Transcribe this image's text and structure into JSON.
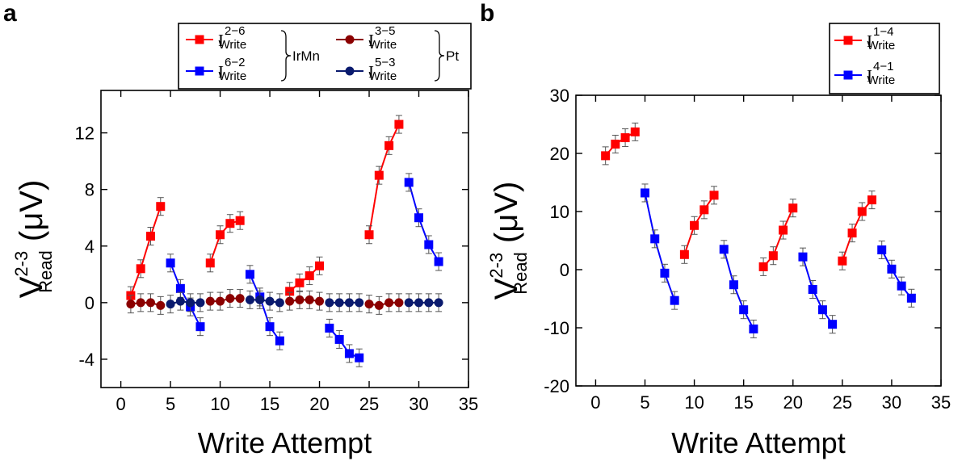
{
  "panels": {
    "a": {
      "label": "a"
    },
    "b": {
      "label": "b"
    }
  },
  "chart_data": [
    {
      "id": "a",
      "type": "line",
      "xlabel": "Write Attempt",
      "ylabel": {
        "main": "V",
        "sup": "2-3",
        "sub": "Read",
        "unit": "(μV)"
      },
      "xlim": [
        -2,
        35
      ],
      "ylim": [
        -6,
        15
      ],
      "xticks": [
        0,
        5,
        10,
        15,
        20,
        25,
        30,
        35
      ],
      "yticks": [
        -4,
        0,
        4,
        8,
        12
      ],
      "grid": false,
      "legend_position": "top",
      "legend_groups": [
        {
          "label": "IrMn",
          "members": [
            0,
            1
          ]
        },
        {
          "label": "Pt",
          "members": [
            2,
            3
          ]
        }
      ],
      "series": [
        {
          "name": "I_Write^{2−6}",
          "main": "I",
          "sup": "2−6",
          "sub": "Write",
          "color": "#ff0000",
          "marker": "square",
          "segments": [
            {
              "x": [
                1,
                2,
                3,
                4
              ],
              "y": [
                0.5,
                2.4,
                4.7,
                6.8
              ]
            },
            {
              "x": [
                9,
                10,
                11,
                12
              ],
              "y": [
                2.8,
                4.8,
                5.6,
                5.8
              ]
            },
            {
              "x": [
                17,
                18,
                19,
                20
              ],
              "y": [
                0.8,
                1.4,
                1.9,
                2.6
              ]
            },
            {
              "x": [
                25,
                26,
                27,
                28
              ],
              "y": [
                4.8,
                9.0,
                11.1,
                12.6
              ]
            }
          ]
        },
        {
          "name": "I_Write^{6−2}",
          "main": "I",
          "sup": "6−2",
          "sub": "Write",
          "color": "#0000ff",
          "marker": "square",
          "segments": [
            {
              "x": [
                5,
                6,
                7,
                8
              ],
              "y": [
                2.8,
                1.0,
                -0.3,
                -1.7
              ]
            },
            {
              "x": [
                13,
                14,
                15,
                16
              ],
              "y": [
                2.0,
                0.4,
                -1.7,
                -2.7
              ]
            },
            {
              "x": [
                21,
                22,
                23,
                24
              ],
              "y": [
                -1.8,
                -2.6,
                -3.6,
                -3.9
              ]
            },
            {
              "x": [
                29,
                30,
                31,
                32
              ],
              "y": [
                8.5,
                6.0,
                4.1,
                2.9
              ]
            }
          ]
        },
        {
          "name": "I_Write^{3−5}",
          "main": "I",
          "sup": "3−5",
          "sub": "Write",
          "color": "#8b0000",
          "marker": "circle",
          "segments": [
            {
              "x": [
                1,
                2,
                3,
                4
              ],
              "y": [
                -0.1,
                0.0,
                0.0,
                -0.2
              ]
            },
            {
              "x": [
                9,
                10,
                11,
                12
              ],
              "y": [
                0.1,
                0.1,
                0.3,
                0.3
              ]
            },
            {
              "x": [
                17,
                18,
                19,
                20
              ],
              "y": [
                0.1,
                0.2,
                0.2,
                0.1
              ]
            },
            {
              "x": [
                25,
                26,
                27,
                28
              ],
              "y": [
                -0.1,
                -0.2,
                0.0,
                0.0
              ]
            }
          ]
        },
        {
          "name": "I_Write^{5−3}",
          "main": "I",
          "sup": "5−3",
          "sub": "Write",
          "color": "#0a1a6e",
          "marker": "circle",
          "segments": [
            {
              "x": [
                5,
                6,
                7,
                8
              ],
              "y": [
                -0.1,
                0.1,
                0.0,
                0.0
              ]
            },
            {
              "x": [
                13,
                14,
                15,
                16
              ],
              "y": [
                0.2,
                0.2,
                0.1,
                0.0
              ]
            },
            {
              "x": [
                21,
                22,
                23,
                24
              ],
              "y": [
                0.0,
                0.0,
                0.0,
                0.0
              ]
            },
            {
              "x": [
                29,
                30,
                31,
                32
              ],
              "y": [
                0.0,
                0.0,
                0.0,
                0.0
              ]
            }
          ]
        }
      ]
    },
    {
      "id": "b",
      "type": "line",
      "xlabel": "Write Attempt",
      "ylabel": {
        "main": "V",
        "sup": "2-3",
        "sub": "Read",
        "unit": "(μV)"
      },
      "xlim": [
        -2,
        35
      ],
      "ylim": [
        -20,
        30
      ],
      "xticks": [
        0,
        5,
        10,
        15,
        20,
        25,
        30,
        35
      ],
      "yticks": [
        -20,
        -10,
        0,
        10,
        20,
        30
      ],
      "grid": false,
      "legend_position": "top-right",
      "series": [
        {
          "name": "I_Write^{1−4}",
          "main": "I",
          "sup": "1−4",
          "sub": "Write",
          "color": "#ff0000",
          "marker": "square",
          "segments": [
            {
              "x": [
                1,
                2,
                3,
                4
              ],
              "y": [
                19.6,
                21.6,
                22.7,
                23.7
              ]
            },
            {
              "x": [
                9,
                10,
                11,
                12
              ],
              "y": [
                2.6,
                7.6,
                10.3,
                12.8
              ]
            },
            {
              "x": [
                17,
                18,
                19,
                20
              ],
              "y": [
                0.5,
                2.4,
                6.8,
                10.6
              ]
            },
            {
              "x": [
                25,
                26,
                27,
                28
              ],
              "y": [
                1.5,
                6.3,
                10.0,
                12.0
              ]
            }
          ]
        },
        {
          "name": "I_Write^{4−1}",
          "main": "I",
          "sup": "4−1",
          "sub": "Write",
          "color": "#0000ff",
          "marker": "square",
          "segments": [
            {
              "x": [
                5,
                6,
                7,
                8
              ],
              "y": [
                13.2,
                5.3,
                -0.6,
                -5.3
              ]
            },
            {
              "x": [
                13,
                14,
                15,
                16
              ],
              "y": [
                3.5,
                -2.6,
                -6.9,
                -10.2
              ]
            },
            {
              "x": [
                21,
                22,
                23,
                24
              ],
              "y": [
                2.2,
                -3.4,
                -6.9,
                -9.4
              ]
            },
            {
              "x": [
                29,
                30,
                31,
                32
              ],
              "y": [
                3.4,
                0.1,
                -2.8,
                -4.9
              ]
            }
          ]
        }
      ]
    }
  ]
}
